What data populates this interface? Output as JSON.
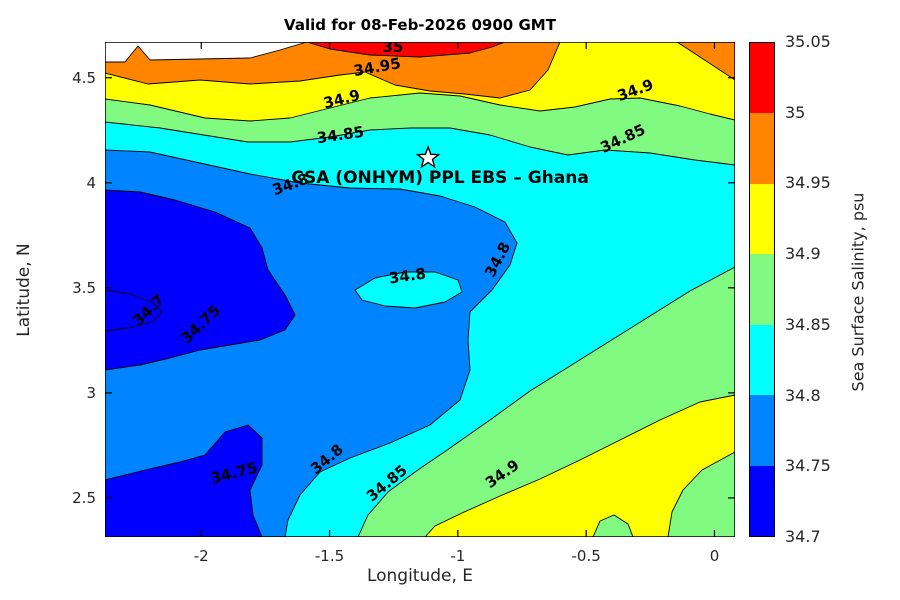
{
  "title": "Valid for 08-Feb-2026 0900 GMT",
  "colors": {
    "darkblue": "#0000FF",
    "blue": "#0084FF",
    "cyan": "#00FFFF",
    "green": "#80FA80",
    "yellow": "#FFFF00",
    "orange": "#FF8400",
    "red": "#FF0000",
    "white": "#FFFFFF"
  },
  "chart_data": {
    "type": "filled_contour",
    "title": "Valid for 08-Feb-2026 0900 GMT",
    "xlabel": "Longitude, E",
    "ylabel": "Latitude, N",
    "xlim": [
      -2.375,
      0.08
    ],
    "ylim": [
      2.314,
      4.67
    ],
    "xticks": [
      -2,
      -1.5,
      -1,
      -0.5,
      0
    ],
    "yticks": [
      2.5,
      3,
      3.5,
      4,
      4.5
    ],
    "grid": false,
    "contour_levels": [
      34.7,
      34.75,
      34.8,
      34.85,
      34.9,
      34.95,
      35
    ],
    "colorbar": {
      "label": "Sea Surface Salinity, psu",
      "ticks": [
        34.7,
        34.75,
        34.8,
        34.85,
        34.9,
        34.95,
        35,
        35.05
      ],
      "colors": [
        "#0000FF",
        "#0084FF",
        "#00FFFF",
        "#80FA80",
        "#FFFF00",
        "#FF8400",
        "#FF0000"
      ]
    },
    "contour_labels": [
      {
        "text": "35",
        "lon": -1.253,
        "lat": 4.622,
        "rot": 0
      },
      {
        "text": "34.95",
        "lon": -1.311,
        "lat": 4.527,
        "rot": -10
      },
      {
        "text": "34.9",
        "lon": -1.448,
        "lat": 4.375,
        "rot": -14
      },
      {
        "text": "34.85",
        "lon": -1.455,
        "lat": 4.204,
        "rot": -8
      },
      {
        "text": "34.8",
        "lon": -1.646,
        "lat": 3.97,
        "rot": -20
      },
      {
        "text": "34.9",
        "lon": -0.302,
        "lat": 4.418,
        "rot": -20
      },
      {
        "text": "34.85",
        "lon": -0.349,
        "lat": 4.189,
        "rot": -25
      },
      {
        "text": "34.8",
        "lon": -1.194,
        "lat": 3.533,
        "rot": -8
      },
      {
        "text": "34.8",
        "lon": -0.828,
        "lat": 3.623,
        "rot": -62
      },
      {
        "text": "34.7",
        "lon": -2.192,
        "lat": 3.376,
        "rot": -44
      },
      {
        "text": "34.75",
        "lon": -1.989,
        "lat": 3.309,
        "rot": -44
      },
      {
        "text": "34.75",
        "lon": -1.868,
        "lat": 2.595,
        "rot": -14
      },
      {
        "text": "34.8",
        "lon": -1.498,
        "lat": 2.666,
        "rot": -40
      },
      {
        "text": "34.85",
        "lon": -1.264,
        "lat": 2.552,
        "rot": -40
      },
      {
        "text": "34.9",
        "lon": -0.816,
        "lat": 2.595,
        "rot": -35
      }
    ],
    "annotation": {
      "label": "CSA (ONHYM) PPL EBS  – Ghana",
      "marker": "star",
      "lon": -1.116,
      "lat": 4.118
    }
  }
}
